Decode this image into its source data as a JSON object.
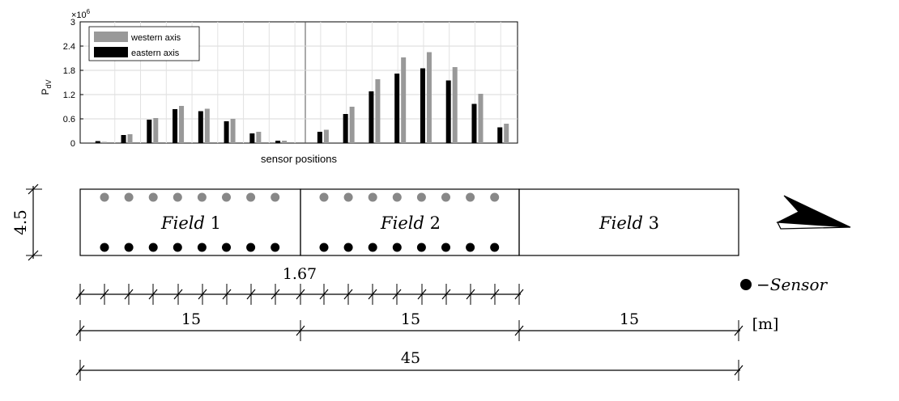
{
  "chart_data": {
    "type": "bar",
    "ylabel": "P",
    "ylabel_subscript": "dV",
    "exponent_base": "×10",
    "exponent_power": "6",
    "xlabel": "sensor positions",
    "ylim": [
      0,
      3
    ],
    "yticks": [
      "0",
      "0.6",
      "1.2",
      "1.8",
      "2.4",
      "3"
    ],
    "ytick_values": [
      0,
      0.6,
      1.2,
      1.8,
      2.4,
      3
    ],
    "grid": true,
    "legend_position": "top-left",
    "series": [
      {
        "name": "western axis",
        "color": "#999999",
        "values": [
          0.03,
          0.22,
          0.62,
          0.92,
          0.85,
          0.6,
          0.28,
          0.06,
          0.33,
          0.9,
          1.58,
          2.12,
          2.25,
          1.88,
          1.22,
          0.48
        ]
      },
      {
        "name": "eastern axis",
        "color": "#000000",
        "values": [
          0.05,
          0.2,
          0.58,
          0.84,
          0.79,
          0.54,
          0.24,
          0.06,
          0.28,
          0.72,
          1.28,
          1.72,
          1.85,
          1.55,
          0.97,
          0.39
        ]
      }
    ]
  },
  "diagram": {
    "height_dim": "4.5",
    "fields": [
      {
        "label_word": "Field",
        "label_num": "1"
      },
      {
        "label_word": "Field",
        "label_num": "2"
      },
      {
        "label_word": "Field",
        "label_num": "3"
      }
    ],
    "sensor_rows": [
      {
        "color": "#888888",
        "count": 16
      },
      {
        "color": "#000000",
        "count": 16
      }
    ],
    "spacing_label": "1.67",
    "field_widths": [
      "15",
      "15",
      "15"
    ],
    "total_length": "45",
    "unit": "[m]",
    "legend_sensor": "−Sensor"
  }
}
